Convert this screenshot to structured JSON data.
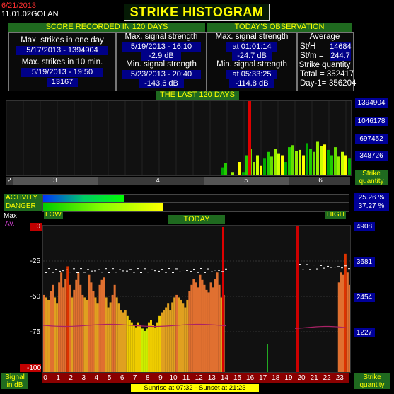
{
  "header": {
    "date": "6/21/2013",
    "station": "11.01.02GOLAN",
    "title": "STRIKE HISTOGRAM"
  },
  "score": {
    "header": "SCORE RECORDED IN 120 DAYS",
    "max_one_day_label": "Max. strikes in one day",
    "max_one_day_value": "5/17/2013 - 1394904",
    "max_10min_label": "Max. strikes in 10 min.",
    "max_10min_date": "5/19/2013 - 19:50",
    "max_10min_value": "13167",
    "max_signal_label": "Max. signal strength",
    "max_signal_date": "5/19/2013 - 16:10",
    "max_signal_value": "-2.9 dB",
    "min_signal_label": "Min. signal strength",
    "min_signal_date": "5/23/2013 - 20:40",
    "min_signal_value": "-143.6 dB"
  },
  "today_obs": {
    "header": "TODAY'S OBSERVATION",
    "max_signal_label": "Max. signal strength",
    "max_signal_time": "at 01:01:14",
    "max_signal_value": "-24.7 dB",
    "min_signal_label": "Min. signal strength",
    "min_signal_time": "at 05:33:25",
    "min_signal_value": "-114.8 dB",
    "average_label": "Average",
    "sth_label": "St/H =",
    "sth_value": "14684",
    "stm_label": "St/m =",
    "stm_value": "244.7",
    "quantity_label": "Strike quantity",
    "total_label": "Total",
    "total_value": "= 352417",
    "day1_label": "Day-1=",
    "day1_value": "356204"
  },
  "last120": {
    "header": "THE LAST 120 DAYS",
    "axis_values": [
      "1394904",
      "1046178",
      "697452",
      "348726"
    ],
    "axis_title": "Strike quantity",
    "weeks": [
      "2",
      "3",
      "4",
      "5",
      "6"
    ]
  },
  "levels": {
    "activity_label": "ACTIVITY",
    "danger_label": "DANGER",
    "activity_value": "25.26 %",
    "danger_value": "37.27 %",
    "activity_fraction": 0.2526,
    "danger_fraction": 0.3727,
    "low_label": "LOW",
    "high_label": "HIGH"
  },
  "today": {
    "header": "TODAY",
    "max_label": "Max",
    "av_label": "Av.",
    "left_axis": [
      "0",
      "-25",
      "-50",
      "-75",
      "-100"
    ],
    "right_axis": [
      "4908",
      "3681",
      "2454",
      "1227"
    ],
    "hours": [
      "0",
      "1",
      "2",
      "3",
      "4",
      "5",
      "6",
      "7",
      "8",
      "9",
      "10",
      "11",
      "12",
      "13",
      "14",
      "15",
      "16",
      "17",
      "18",
      "19",
      "20",
      "21",
      "22",
      "23"
    ],
    "left_axis_title": "Signal in dB",
    "right_axis_title": "Strike quantity",
    "sun_text": "Sunrise at 07:32  -  Sunset at 21:23"
  },
  "colors": {
    "panel_header_bg": "#1f6a1f",
    "value_bg": "#000088",
    "axis_bg": "#000099",
    "title_text": "#ffff00",
    "hour_bar_bg": "#8a0000"
  }
}
